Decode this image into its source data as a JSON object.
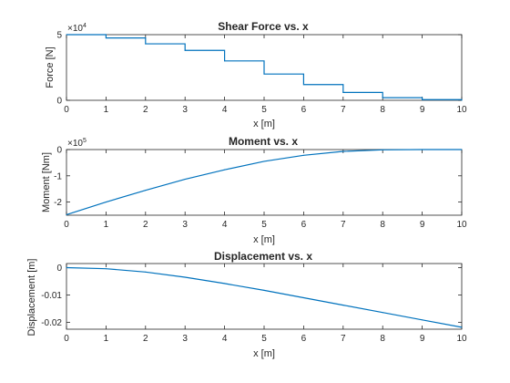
{
  "colors": {
    "series": "#0072BD",
    "axis": "#262626"
  },
  "chart_data": [
    {
      "type": "line",
      "step": true,
      "title": "Shear Force vs. x",
      "xlabel": "x [m]",
      "ylabel": "Force [N]",
      "y_exponent_label": "×10",
      "y_exponent": "4",
      "xlim": [
        0,
        10
      ],
      "ylim": [
        0,
        5
      ],
      "xticks": [
        "0",
        "1",
        "2",
        "3",
        "4",
        "5",
        "6",
        "7",
        "8",
        "9",
        "10"
      ],
      "yticks": [
        {
          "v": 0,
          "label": "0"
        },
        {
          "v": 5,
          "label": "5"
        }
      ],
      "x": [
        0,
        1,
        2,
        3,
        4,
        5,
        6,
        7,
        8,
        9,
        10
      ],
      "y": [
        5.0,
        4.75,
        4.3,
        3.8,
        3.0,
        2.0,
        1.2,
        0.6,
        0.2,
        0.05,
        0.0
      ]
    },
    {
      "type": "line",
      "title": "Moment vs. x",
      "xlabel": "x [m]",
      "ylabel": "Moment [Nm]",
      "y_exponent_label": "×10",
      "y_exponent": "5",
      "xlim": [
        0,
        10
      ],
      "ylim": [
        -2.5,
        0
      ],
      "xticks": [
        "0",
        "1",
        "2",
        "3",
        "4",
        "5",
        "6",
        "7",
        "8",
        "9",
        "10"
      ],
      "yticks": [
        {
          "v": 0,
          "label": "0"
        },
        {
          "v": -1,
          "label": "-1"
        },
        {
          "v": -2,
          "label": "-2"
        }
      ],
      "x": [
        0,
        1,
        2,
        3,
        4,
        5,
        6,
        7,
        8,
        9,
        10
      ],
      "y": [
        -2.48,
        -2.0,
        -1.55,
        -1.13,
        -0.77,
        -0.45,
        -0.22,
        -0.07,
        -0.01,
        0.0,
        0.0
      ]
    },
    {
      "type": "line",
      "title": "Displacement vs. x",
      "xlabel": "x [m]",
      "ylabel": "Displacement [m]",
      "xlim": [
        0,
        10
      ],
      "ylim": [
        -0.0225,
        0.0015
      ],
      "xticks": [
        "0",
        "1",
        "2",
        "3",
        "4",
        "5",
        "6",
        "7",
        "8",
        "9",
        "10"
      ],
      "yticks": [
        {
          "v": 0,
          "label": "0"
        },
        {
          "v": -0.01,
          "label": "-0.01"
        },
        {
          "v": -0.02,
          "label": "-0.02"
        }
      ],
      "x": [
        0,
        1,
        2,
        3,
        4,
        5,
        6,
        7,
        8,
        9,
        10
      ],
      "y": [
        0.0,
        -0.0004,
        -0.0016,
        -0.0035,
        -0.0058,
        -0.0083,
        -0.011,
        -0.0137,
        -0.0164,
        -0.0191,
        -0.0218
      ]
    }
  ]
}
